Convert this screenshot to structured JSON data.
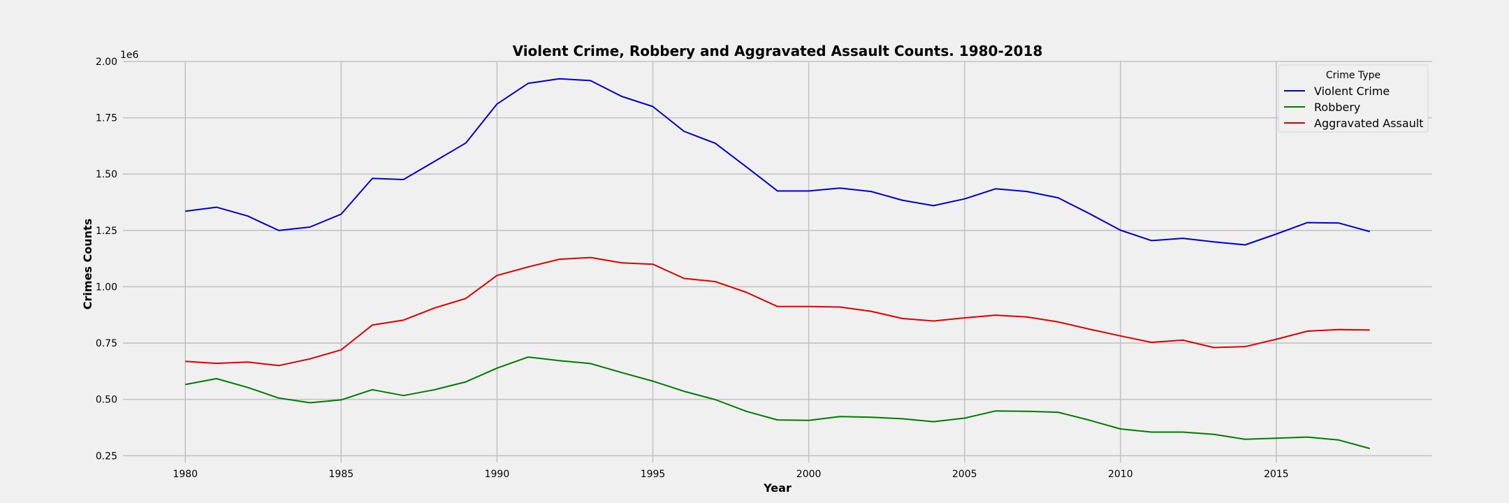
{
  "chart_data": {
    "type": "line",
    "title": "Violent Crime, Robbery and Aggravated Assault Counts. 1980-2018",
    "xlabel": "Year",
    "ylabel": "Crimes Counts",
    "y_offset_label": "1e6",
    "xlim": [
      1978,
      2020
    ],
    "ylim": [
      0.22,
      2.0
    ],
    "x_ticks": [
      1980,
      1985,
      1990,
      1995,
      2000,
      2005,
      2010,
      2015
    ],
    "y_ticks": [
      "0.25",
      "0.50",
      "0.75",
      "1.00",
      "1.25",
      "1.50",
      "1.75",
      "2.00"
    ],
    "grid": true,
    "legend": {
      "title": "Crime Type",
      "placement": "top-right"
    },
    "x": [
      1980,
      1981,
      1982,
      1983,
      1984,
      1985,
      1986,
      1987,
      1988,
      1989,
      1990,
      1991,
      1992,
      1993,
      1994,
      1995,
      1996,
      1997,
      1998,
      1999,
      2000,
      2001,
      2002,
      2003,
      2004,
      2005,
      2006,
      2007,
      2008,
      2009,
      2010,
      2011,
      2012,
      2013,
      2014,
      2015,
      2016,
      2017,
      2018
    ],
    "series": [
      {
        "name": "Violent Crime",
        "color": "#0000cc",
        "values": [
          1.335,
          1.353,
          1.314,
          1.25,
          1.265,
          1.322,
          1.481,
          1.476,
          1.557,
          1.638,
          1.811,
          1.903,
          1.923,
          1.915,
          1.845,
          1.8,
          1.69,
          1.637,
          1.532,
          1.425,
          1.425,
          1.438,
          1.423,
          1.384,
          1.36,
          1.39,
          1.435,
          1.423,
          1.395,
          1.325,
          1.251,
          1.205,
          1.215,
          1.199,
          1.186,
          1.234,
          1.285,
          1.283,
          1.245
        ]
      },
      {
        "name": "Robbery",
        "color": "#007a00",
        "values": [
          0.566,
          0.592,
          0.553,
          0.506,
          0.485,
          0.498,
          0.543,
          0.517,
          0.543,
          0.578,
          0.639,
          0.688,
          0.672,
          0.659,
          0.619,
          0.581,
          0.536,
          0.499,
          0.447,
          0.409,
          0.407,
          0.424,
          0.421,
          0.414,
          0.401,
          0.417,
          0.449,
          0.447,
          0.443,
          0.408,
          0.369,
          0.355,
          0.355,
          0.345,
          0.323,
          0.328,
          0.333,
          0.32,
          0.282
        ]
      },
      {
        "name": "Aggravated Assault",
        "color": "#e00000",
        "values": [
          0.669,
          0.66,
          0.666,
          0.65,
          0.68,
          0.72,
          0.83,
          0.852,
          0.906,
          0.948,
          1.05,
          1.088,
          1.122,
          1.13,
          1.106,
          1.1,
          1.037,
          1.023,
          0.975,
          0.912,
          0.912,
          0.91,
          0.891,
          0.859,
          0.848,
          0.862,
          0.874,
          0.866,
          0.844,
          0.812,
          0.782,
          0.753,
          0.763,
          0.73,
          0.734,
          0.767,
          0.803,
          0.81,
          0.808
        ]
      }
    ]
  }
}
